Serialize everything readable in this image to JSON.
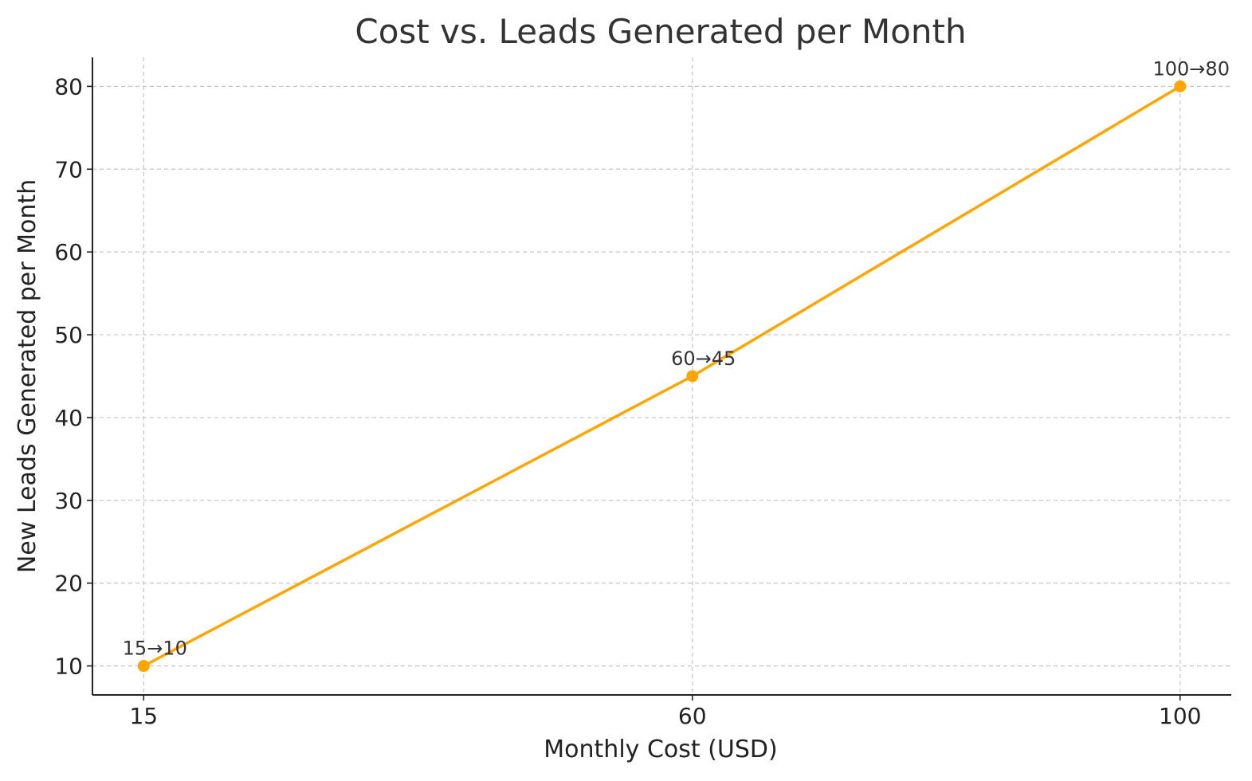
{
  "chart_data": {
    "type": "line",
    "title": "Cost vs. Leads Generated per Month",
    "xlabel": "Monthly Cost (USD)",
    "ylabel": "New Leads Generated per Month",
    "x": [
      15,
      60,
      100
    ],
    "x_tick_labels": [
      "15",
      "60",
      "100"
    ],
    "xlim": [
      10.8,
      104.2
    ],
    "ylim": [
      6.5,
      83.5
    ],
    "y_ticks": [
      10,
      20,
      30,
      40,
      50,
      60,
      70,
      80
    ],
    "y_tick_labels": [
      "10",
      "20",
      "30",
      "40",
      "50",
      "60",
      "70",
      "80"
    ],
    "series": [
      {
        "values": [
          10,
          45,
          80
        ],
        "color": "#FFA500",
        "point_labels": [
          "15→10",
          "60→45",
          "100→80"
        ]
      }
    ],
    "grid": true,
    "grid_style": "dashed",
    "legend": "none"
  }
}
